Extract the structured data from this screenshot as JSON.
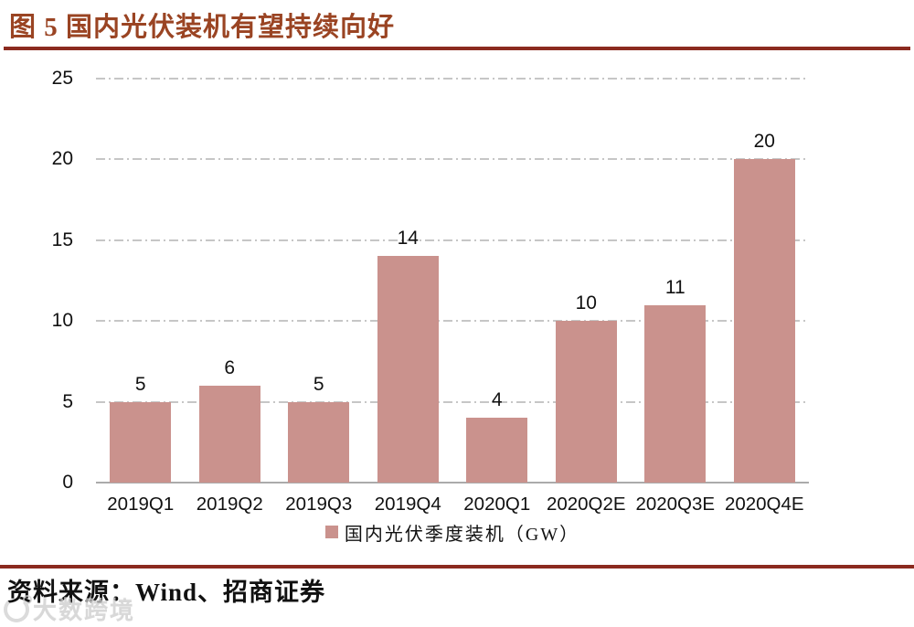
{
  "title": {
    "text": "图 5 国内光伏装机有望持续向好"
  },
  "chart_data": {
    "type": "bar",
    "categories": [
      "2019Q1",
      "2019Q2",
      "2019Q3",
      "2019Q4",
      "2020Q1",
      "2020Q2E",
      "2020Q3E",
      "2020Q4E"
    ],
    "values": [
      5,
      6,
      5,
      14,
      4,
      10,
      11,
      20
    ],
    "title": "图 5 国内光伏装机有望持续向好",
    "xlabel": "",
    "ylabel": "",
    "ylim": [
      0,
      25
    ],
    "yticks": [
      0,
      5,
      10,
      15,
      20,
      25
    ],
    "legend": "国内光伏季度装机（GW）",
    "legend_position": "bottom-center",
    "grid": "horizontal dash-dot",
    "bar_color": "#ca928d",
    "value_labels": true
  },
  "footer": {
    "source": "资料来源：Wind、招商证券",
    "watermark": "大数跨境"
  },
  "colors": {
    "title_text": "#9a4423",
    "rule": "#8b2a1f",
    "gridline": "#c6c6c6",
    "axis_line": "#ababab",
    "bar": "#ca928d",
    "label_text": "#111111",
    "watermark": "#cbcbcb"
  }
}
